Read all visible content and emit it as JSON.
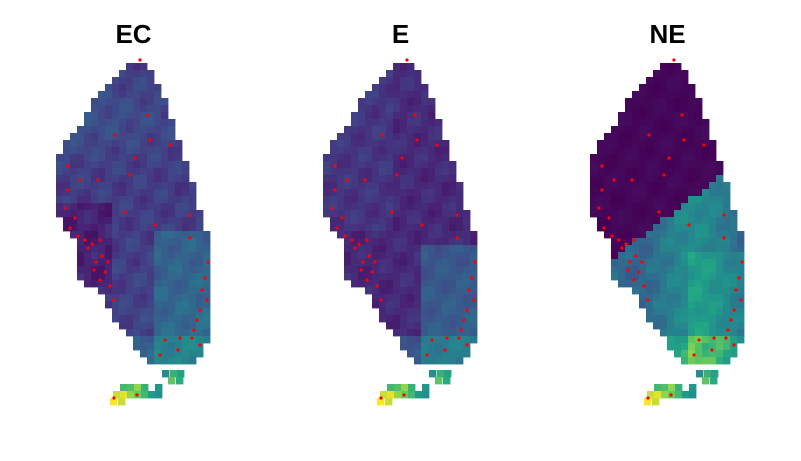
{
  "panels": [
    {
      "id": "ec",
      "title": "EC",
      "palette": "ec"
    },
    {
      "id": "e",
      "title": "E",
      "palette": "e"
    },
    {
      "id": "ne",
      "title": "NE",
      "palette": "ne"
    }
  ],
  "colors": {
    "points": "#ff0000",
    "viridis_low": "#440154",
    "viridis_mid": "#21908d",
    "viridis_high": "#fde725"
  }
}
